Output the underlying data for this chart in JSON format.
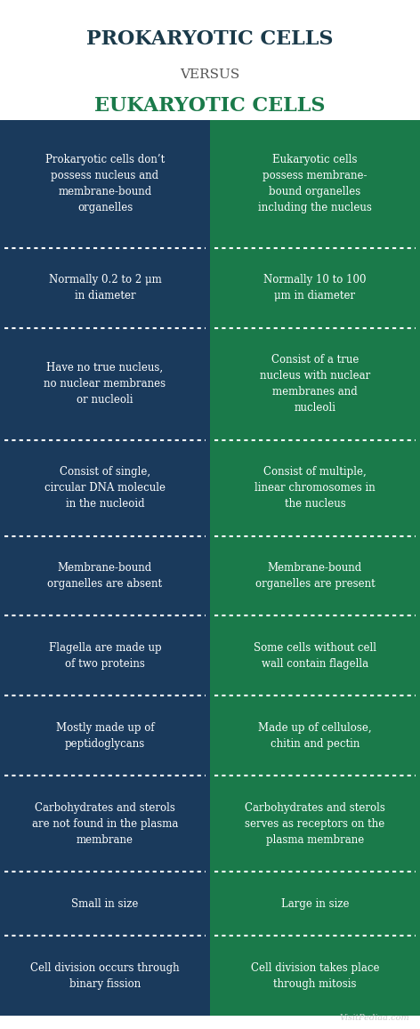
{
  "title_line1": "PROKARYOTIC CELLS",
  "title_line2": "VERSUS",
  "title_line3": "EUKARYOTIC CELLS",
  "title_color1": "#1a3a4a",
  "title_color2": "#555555",
  "title_color3": "#1a7a4a",
  "left_color": "#1a3a5c",
  "right_color": "#1a7a4a",
  "text_color": "#ffffff",
  "bg_color": "#ffffff",
  "watermark": "VisitPediaa.com",
  "rows": [
    {
      "left": "Prokaryotic cells don’t\npossess nucleus and\nmembrane-bound\norganelles",
      "right": "Eukaryotic cells\npossess membrane-\nbound organelles\nincluding the nucleus"
    },
    {
      "left": "Normally 0.2 to 2 μm\nin diameter",
      "right": "Normally 10 to 100\nμm in diameter"
    },
    {
      "left": "Have no true nucleus,\nno nuclear membranes\nor nucleoli",
      "right": "Consist of a true\nnucleus with nuclear\nmembranes and\nnucleoli"
    },
    {
      "left": "Consist of single,\ncircular DNA molecule\nin the nucleoid",
      "right": "Consist of multiple,\nlinear chromosomes in\nthe nucleus"
    },
    {
      "left": "Membrane-bound\norganelles are absent",
      "right": "Membrane-bound\norganelles are present"
    },
    {
      "left": "Flagella are made up\nof two proteins",
      "right": "Some cells without cell\nwall contain flagella"
    },
    {
      "left": "Mostly made up of\npeptidoglycans",
      "right": "Made up of cellulose,\nchitin and pectin"
    },
    {
      "left": "Carbohydrates and sterols\nare not found in the plasma\nmembrane",
      "right": "Carbohydrates and sterols\nserves as receptors on the\nplasma membrane"
    },
    {
      "left": "Small in size",
      "right": "Large in size"
    },
    {
      "left": "Cell division occurs through\nbinary fission",
      "right": "Cell division takes place\nthrough mitosis"
    }
  ]
}
